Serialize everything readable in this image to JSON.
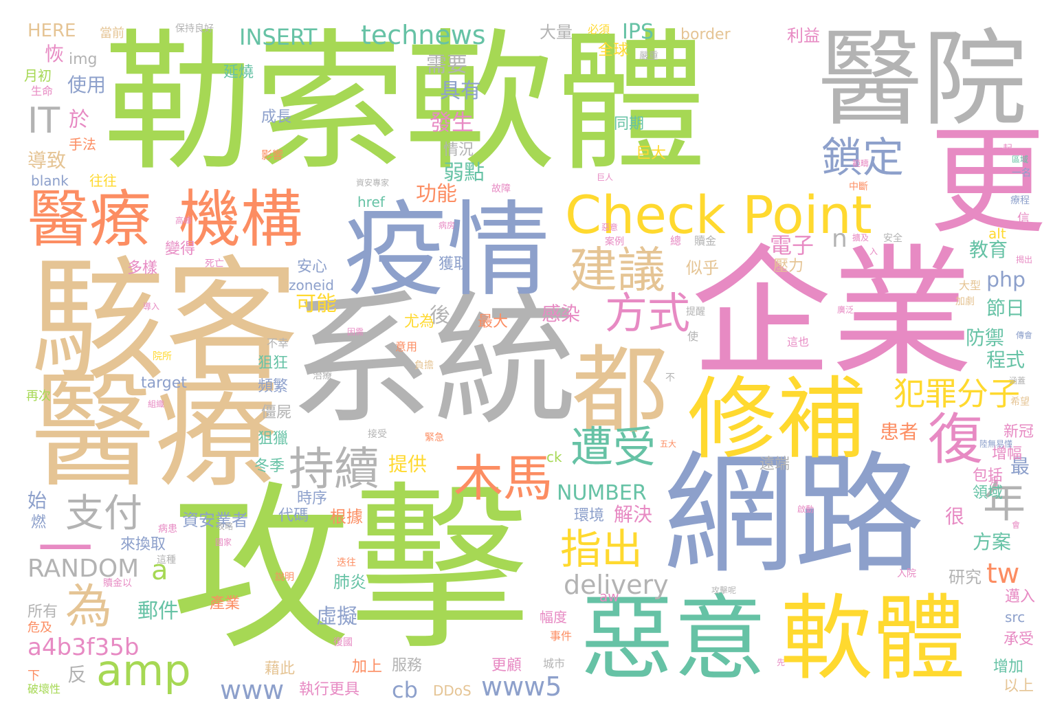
{
  "palette": {
    "green": "#a6d854",
    "tan": "#e5c494",
    "gray": "#b3b3b3",
    "blue": "#8da0cb",
    "pink": "#e78ac3",
    "yellow": "#ffd92f",
    "orange": "#fc8d62",
    "teal": "#66c2a5"
  },
  "words": [
    {
      "text": "勒索",
      "color": "green"
    },
    {
      "text": "軟體",
      "color": "green"
    },
    {
      "text": "醫院",
      "color": "gray"
    },
    {
      "text": "更",
      "color": "pink"
    },
    {
      "text": "企業",
      "color": "pink"
    },
    {
      "text": "駭客",
      "color": "tan"
    },
    {
      "text": "醫療",
      "color": "tan"
    },
    {
      "text": "系統",
      "color": "gray"
    },
    {
      "text": "都",
      "color": "tan"
    },
    {
      "text": "疫情",
      "color": "blue"
    },
    {
      "text": "攻擊",
      "color": "green"
    },
    {
      "text": "網路",
      "color": "blue"
    },
    {
      "text": "修補",
      "color": "yellow"
    },
    {
      "text": "惡意",
      "color": "teal"
    },
    {
      "text": "軟體",
      "color": "yellow"
    },
    {
      "text": "醫療",
      "color": "orange"
    },
    {
      "text": "機構",
      "color": "orange"
    },
    {
      "text": "Check Point",
      "color": "yellow"
    },
    {
      "text": "建議",
      "color": "tan"
    },
    {
      "text": "鎖定",
      "color": "blue"
    },
    {
      "text": "方式",
      "color": "pink"
    },
    {
      "text": "木馬",
      "color": "orange"
    },
    {
      "text": "遭受",
      "color": "teal"
    },
    {
      "text": "持續",
      "color": "gray"
    },
    {
      "text": "復",
      "color": "pink"
    },
    {
      "text": "支付",
      "color": "gray"
    },
    {
      "text": "年",
      "color": "gray"
    },
    {
      "text": "指出",
      "color": "yellow"
    },
    {
      "text": "為",
      "color": "tan"
    },
    {
      "text": "amp",
      "color": "green"
    },
    {
      "text": "犯罪分子",
      "color": "yellow"
    },
    {
      "text": "technews",
      "color": "teal"
    },
    {
      "text": "INSERT",
      "color": "teal"
    },
    {
      "text": "IT",
      "color": "gray"
    },
    {
      "text": "RANDOM",
      "color": "gray"
    },
    {
      "text": "a",
      "color": "green"
    },
    {
      "text": "一",
      "color": "pink"
    },
    {
      "text": "delivery",
      "color": "gray"
    },
    {
      "text": "NUMBER",
      "color": "teal"
    },
    {
      "text": "www",
      "color": "blue"
    },
    {
      "text": "www5",
      "color": "blue"
    },
    {
      "text": "a4b3f35b",
      "color": "pink"
    },
    {
      "text": "cb",
      "color": "blue"
    },
    {
      "text": "tw",
      "color": "orange"
    },
    {
      "text": "php",
      "color": "blue"
    },
    {
      "text": "電子",
      "color": "pink"
    },
    {
      "text": "IPS",
      "color": "teal"
    },
    {
      "text": "n",
      "color": "gray"
    },
    {
      "text": "需要",
      "color": "gray"
    },
    {
      "text": "具有",
      "color": "blue"
    },
    {
      "text": "發生",
      "color": "pink"
    },
    {
      "text": "弱點",
      "color": "teal"
    },
    {
      "text": "功能",
      "color": "orange"
    },
    {
      "text": "可能",
      "color": "yellow"
    },
    {
      "text": "感染",
      "color": "pink"
    },
    {
      "text": "解決",
      "color": "pink"
    },
    {
      "text": "提供",
      "color": "yellow"
    },
    {
      "text": "郵件",
      "color": "teal"
    },
    {
      "text": "虛擬",
      "color": "blue"
    },
    {
      "text": "肺炎",
      "color": "teal"
    },
    {
      "text": "資安業者",
      "color": "blue"
    },
    {
      "text": "根據",
      "color": "orange"
    },
    {
      "text": "教育",
      "color": "teal"
    },
    {
      "text": "節日",
      "color": "teal"
    },
    {
      "text": "防禦",
      "color": "teal"
    },
    {
      "text": "程式",
      "color": "teal"
    },
    {
      "text": "患者",
      "color": "orange"
    },
    {
      "text": "方案",
      "color": "teal"
    },
    {
      "text": "研究",
      "color": "gray"
    },
    {
      "text": "很",
      "color": "pink"
    },
    {
      "text": "最",
      "color": "blue"
    },
    {
      "text": "使用",
      "color": "blue"
    },
    {
      "text": "恢",
      "color": "pink"
    },
    {
      "text": "導致",
      "color": "tan"
    },
    {
      "text": "HERE",
      "color": "tan"
    },
    {
      "text": "border",
      "color": "tan"
    },
    {
      "text": "利益",
      "color": "pink"
    },
    {
      "text": "大量",
      "color": "gray"
    },
    {
      "text": "全球",
      "color": "yellow"
    },
    {
      "text": "延燒",
      "color": "teal"
    },
    {
      "text": "成長",
      "color": "blue"
    },
    {
      "text": "同期",
      "color": "teal"
    },
    {
      "text": "巨大",
      "color": "yellow"
    },
    {
      "text": "情況",
      "color": "gray"
    },
    {
      "text": "多樣",
      "color": "pink"
    },
    {
      "text": "變得",
      "color": "pink"
    },
    {
      "text": "安心",
      "color": "blue"
    },
    {
      "text": "獲取",
      "color": "blue"
    },
    {
      "text": "尤為",
      "color": "yellow"
    },
    {
      "text": "最大",
      "color": "orange"
    },
    {
      "text": "後",
      "color": "gray"
    },
    {
      "text": "狙狂",
      "color": "teal"
    },
    {
      "text": "頻繁",
      "color": "blue"
    },
    {
      "text": "僵屍",
      "color": "gray"
    },
    {
      "text": "狙獵",
      "color": "teal"
    },
    {
      "text": "冬季",
      "color": "teal"
    },
    {
      "text": "代碼",
      "color": "blue"
    },
    {
      "text": "時序",
      "color": "blue"
    },
    {
      "text": "來換取",
      "color": "blue"
    },
    {
      "text": "環境",
      "color": "blue"
    },
    {
      "text": "壓力",
      "color": "tan"
    },
    {
      "text": "似乎",
      "color": "tan"
    },
    {
      "text": "領域",
      "color": "teal"
    },
    {
      "text": "包括",
      "color": "pink"
    },
    {
      "text": "新冠",
      "color": "pink"
    },
    {
      "text": "增幅",
      "color": "pink"
    },
    {
      "text": "增加",
      "color": "teal"
    },
    {
      "text": "以上",
      "color": "tan"
    },
    {
      "text": "承受",
      "color": "pink"
    },
    {
      "text": "邁入",
      "color": "pink"
    },
    {
      "text": "遠端",
      "color": "gray"
    },
    {
      "text": "更顧",
      "color": "pink"
    },
    {
      "text": "執行更具",
      "color": "pink"
    },
    {
      "text": "服務",
      "color": "gray"
    },
    {
      "text": "藉此",
      "color": "tan"
    },
    {
      "text": "加上",
      "color": "orange"
    },
    {
      "text": "產業",
      "color": "orange"
    },
    {
      "text": "所有",
      "color": "gray"
    },
    {
      "text": "反",
      "color": "gray"
    },
    {
      "text": "始",
      "color": "blue"
    },
    {
      "text": "燃",
      "color": "blue"
    },
    {
      "text": "img",
      "color": "gray"
    },
    {
      "text": "月初",
      "color": "green"
    },
    {
      "text": "於",
      "color": "pink"
    },
    {
      "text": "手法",
      "color": "orange"
    },
    {
      "text": "blank",
      "color": "blue"
    },
    {
      "text": "往往",
      "color": "yellow"
    },
    {
      "text": "href",
      "color": "teal"
    },
    {
      "text": "zoneid",
      "color": "blue"
    },
    {
      "text": "target",
      "color": "blue"
    },
    {
      "text": "src",
      "color": "blue"
    },
    {
      "text": "DDoS",
      "color": "tan"
    },
    {
      "text": "aw",
      "color": "pink"
    },
    {
      "text": "ck",
      "color": "green"
    },
    {
      "text": "alt",
      "color": "yellow"
    },
    {
      "text": "幅度",
      "color": "pink"
    },
    {
      "text": "事件",
      "color": "orange"
    },
    {
      "text": "城市",
      "color": "gray"
    },
    {
      "text": "再次",
      "color": "green"
    },
    {
      "text": "危及",
      "color": "orange"
    },
    {
      "text": "下",
      "color": "orange"
    },
    {
      "text": "破壞性",
      "color": "green"
    },
    {
      "text": "當前",
      "color": "tan"
    },
    {
      "text": "保持良好",
      "color": "gray"
    },
    {
      "text": "必須",
      "color": "yellow"
    },
    {
      "text": "嚴重",
      "color": "gray"
    },
    {
      "text": "一起",
      "color": "pink"
    },
    {
      "text": "生命",
      "color": "pink"
    },
    {
      "text": "影響",
      "color": "orange"
    },
    {
      "text": "資安專家",
      "color": "gray"
    },
    {
      "text": "故障",
      "color": "pink"
    },
    {
      "text": "中斷",
      "color": "orange"
    },
    {
      "text": "一名",
      "color": "blue"
    },
    {
      "text": "療程",
      "color": "blue"
    },
    {
      "text": "信",
      "color": "pink"
    },
    {
      "text": "贖金",
      "color": "gray"
    },
    {
      "text": "安全",
      "color": "gray"
    },
    {
      "text": "總",
      "color": "pink"
    },
    {
      "text": "案例",
      "color": "pink"
    },
    {
      "text": "死亡",
      "color": "pink"
    },
    {
      "text": "病房",
      "color": "pink"
    },
    {
      "text": "不幸",
      "color": "gray"
    },
    {
      "text": "意用",
      "color": "orange"
    },
    {
      "text": "這也",
      "color": "pink"
    },
    {
      "text": "大型",
      "color": "tan"
    },
    {
      "text": "加劇",
      "color": "tan"
    },
    {
      "text": "入院",
      "color": "pink"
    },
    {
      "text": "說明",
      "color": "orange"
    },
    {
      "text": "贖金以",
      "color": "pink"
    },
    {
      "text": "這種",
      "color": "gray"
    },
    {
      "text": "使",
      "color": "gray"
    },
    {
      "text": "不",
      "color": "gray"
    },
    {
      "text": "希望",
      "color": "tan"
    },
    {
      "text": "月",
      "color": "pink"
    },
    {
      "text": "五大",
      "color": "orange"
    },
    {
      "text": "接受",
      "color": "gray"
    },
    {
      "text": "緊急",
      "color": "orange"
    },
    {
      "text": "負擔",
      "color": "tan"
    },
    {
      "text": "迭往",
      "color": "orange"
    },
    {
      "text": "復國",
      "color": "pink"
    },
    {
      "text": "病患",
      "color": "pink"
    },
    {
      "text": "治療",
      "color": "gray"
    },
    {
      "text": "院所",
      "color": "yellow"
    },
    {
      "text": "導入",
      "color": "pink"
    },
    {
      "text": "因需",
      "color": "pink"
    },
    {
      "text": "國家",
      "color": "pink"
    },
    {
      "text": "攻擊呢",
      "color": "gray"
    },
    {
      "text": "先",
      "color": "pink"
    },
    {
      "text": "揭出",
      "color": "pink"
    },
    {
      "text": "傳會",
      "color": "blue"
    },
    {
      "text": "提醒",
      "color": "gray"
    },
    {
      "text": "啟動",
      "color": "pink"
    },
    {
      "text": "會",
      "color": "pink"
    },
    {
      "text": "涵蓋",
      "color": "gray"
    },
    {
      "text": "陸無易懂",
      "color": "blue"
    },
    {
      "text": "廣泛",
      "color": "pink"
    },
    {
      "text": "範疇",
      "color": "pink"
    },
    {
      "text": "擴及",
      "color": "pink"
    },
    {
      "text": "入",
      "color": "pink"
    },
    {
      "text": "高峰",
      "color": "pink"
    },
    {
      "text": "巨人",
      "color": "pink"
    },
    {
      "text": "惡意",
      "color": "pink"
    },
    {
      "text": "區域",
      "color": "teal"
    },
    {
      "text": "組織",
      "color": "pink"
    },
    {
      "text": "攻略",
      "color": "gray"
    }
  ]
}
